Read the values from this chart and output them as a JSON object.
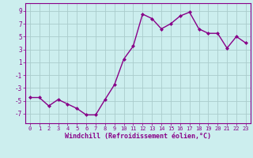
{
  "x": [
    0,
    1,
    2,
    3,
    4,
    5,
    6,
    7,
    8,
    9,
    10,
    11,
    12,
    13,
    14,
    15,
    16,
    17,
    18,
    19,
    20,
    21,
    22,
    23
  ],
  "y": [
    -4.5,
    -4.5,
    -5.8,
    -4.8,
    -5.5,
    -6.2,
    -7.2,
    -7.2,
    -4.8,
    -2.5,
    1.5,
    3.5,
    8.5,
    7.8,
    6.2,
    7.0,
    8.2,
    8.8,
    6.2,
    5.5,
    5.5,
    3.2,
    5.0,
    4.0
  ],
  "line_color": "#880088",
  "marker": "D",
  "marker_size": 2,
  "bg_color": "#cceeee",
  "grid_color": "#aacccc",
  "xlabel": "Windchill (Refroidissement éolien,°C)",
  "xlabel_color": "#880088",
  "tick_color": "#880088",
  "yticks": [
    -7,
    -5,
    -3,
    -1,
    1,
    3,
    5,
    7,
    9
  ],
  "ylim": [
    -8.5,
    10.2
  ],
  "xlim": [
    -0.5,
    23.5
  ],
  "xticks": [
    0,
    1,
    2,
    3,
    4,
    5,
    6,
    7,
    8,
    9,
    10,
    11,
    12,
    13,
    14,
    15,
    16,
    17,
    18,
    19,
    20,
    21,
    22,
    23
  ],
  "tick_fontsize": 5.0,
  "xlabel_fontsize": 6.0,
  "linewidth": 1.0
}
